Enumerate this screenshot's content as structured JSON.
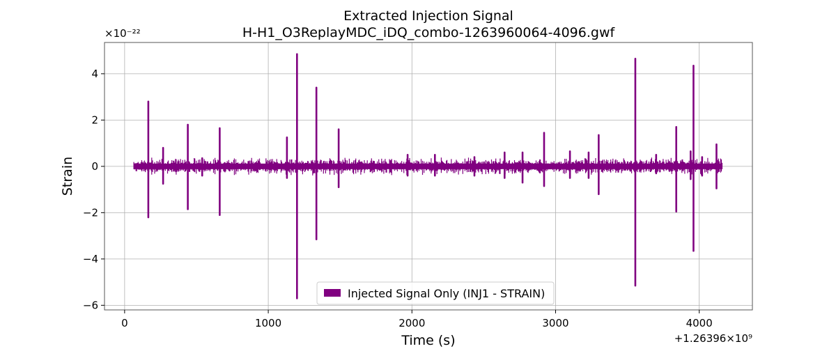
{
  "chart_data": {
    "type": "line",
    "title_line1": "Extracted Injection Signal",
    "title_line2": "H-H1_O3ReplayMDC_iDQ_combo-1263960064-4096.gwf",
    "xlabel": "Time (s)",
    "ylabel": "Strain",
    "y_multiplier_label": "×10⁻²²",
    "x_offset_label": "+1.26396×10⁹",
    "x_offset": 1263960000,
    "xlim": [
      -140,
      4370
    ],
    "ylim": [
      -6.2,
      5.35
    ],
    "x_ticks": [
      0,
      1000,
      2000,
      3000,
      4000
    ],
    "x_tick_labels": [
      "0",
      "1000",
      "2000",
      "3000",
      "4000"
    ],
    "y_ticks": [
      -6,
      -4,
      -2,
      0,
      2,
      4
    ],
    "y_tick_labels": [
      "−6",
      "−4",
      "−2",
      "0",
      "2",
      "4"
    ],
    "grid": true,
    "legend_position": "lower center",
    "series": [
      {
        "name": "Injected Signal Only (INJ1 - STRAIN)",
        "color": "#800080",
        "x_range": [
          64,
          4160
        ],
        "baseline_envelope": [
          -0.12,
          0.12
        ],
        "spikes": [
          {
            "x": 165,
            "y_max": 2.8,
            "y_min": -2.2
          },
          {
            "x": 268,
            "y_max": 0.8,
            "y_min": -0.75
          },
          {
            "x": 440,
            "y_max": 1.8,
            "y_min": -1.85
          },
          {
            "x": 540,
            "y_max": 0.35,
            "y_min": -0.4
          },
          {
            "x": 662,
            "y_max": 1.65,
            "y_min": -2.1
          },
          {
            "x": 1130,
            "y_max": 1.25,
            "y_min": -0.5
          },
          {
            "x": 1200,
            "y_max": 4.85,
            "y_min": -5.7
          },
          {
            "x": 1335,
            "y_max": 3.4,
            "y_min": -3.15
          },
          {
            "x": 1490,
            "y_max": 1.6,
            "y_min": -0.9
          },
          {
            "x": 1970,
            "y_max": 0.5,
            "y_min": -0.4
          },
          {
            "x": 2160,
            "y_max": 0.5,
            "y_min": -0.4
          },
          {
            "x": 2435,
            "y_max": 0.4,
            "y_min": -0.4
          },
          {
            "x": 2645,
            "y_max": 0.6,
            "y_min": -0.5
          },
          {
            "x": 2770,
            "y_max": 0.6,
            "y_min": -0.7
          },
          {
            "x": 2920,
            "y_max": 1.45,
            "y_min": -0.85
          },
          {
            "x": 3100,
            "y_max": 0.65,
            "y_min": -0.5
          },
          {
            "x": 3230,
            "y_max": 0.6,
            "y_min": -0.5
          },
          {
            "x": 3300,
            "y_max": 1.35,
            "y_min": -1.2
          },
          {
            "x": 3555,
            "y_max": 4.65,
            "y_min": -5.15
          },
          {
            "x": 3700,
            "y_max": 0.5,
            "y_min": -0.3
          },
          {
            "x": 3840,
            "y_max": 1.7,
            "y_min": -1.95
          },
          {
            "x": 3940,
            "y_max": 0.65,
            "y_min": -0.55
          },
          {
            "x": 3960,
            "y_max": 4.35,
            "y_min": -3.65
          },
          {
            "x": 4020,
            "y_max": 0.4,
            "y_min": -0.4
          },
          {
            "x": 4120,
            "y_max": 0.95,
            "y_min": -0.95
          }
        ]
      }
    ]
  }
}
